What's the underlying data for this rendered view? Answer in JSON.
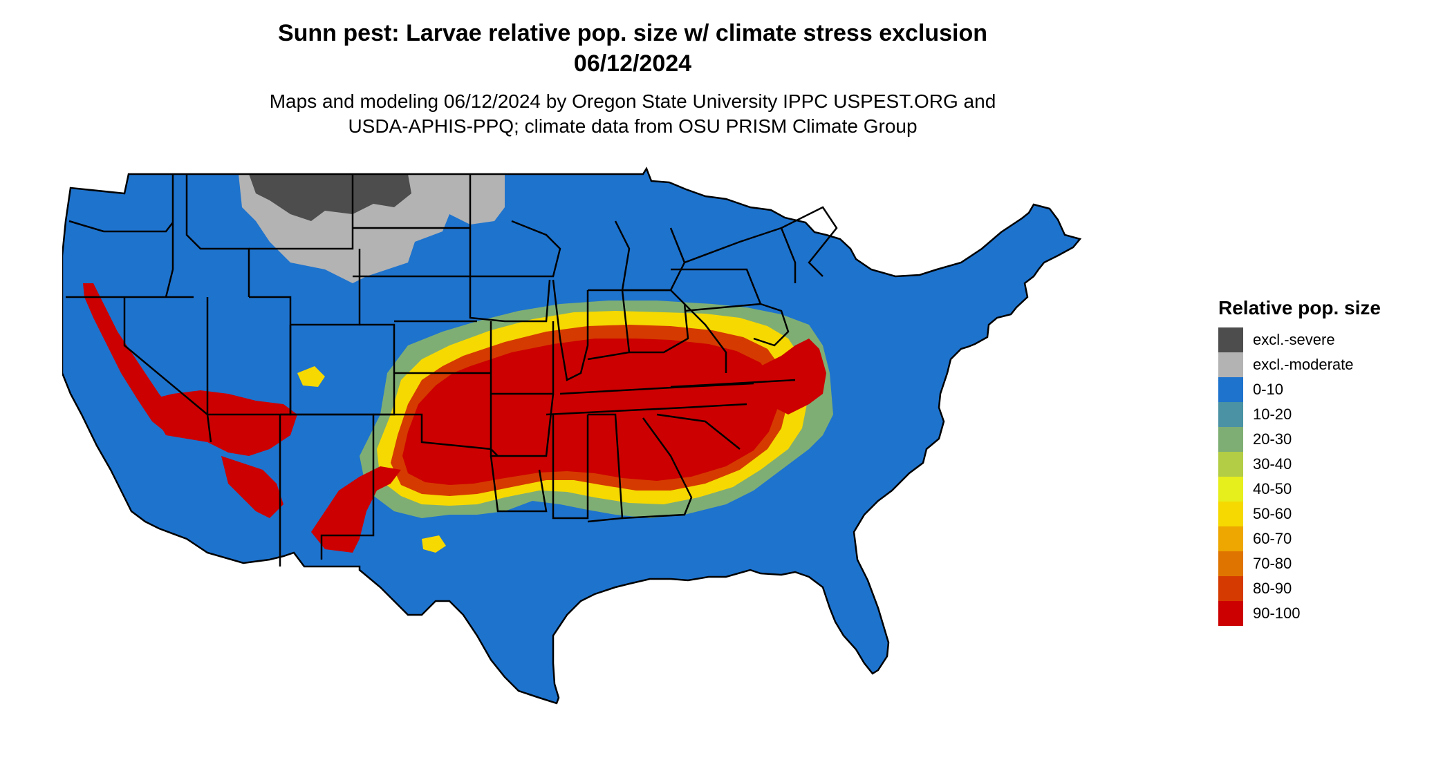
{
  "title": {
    "line1": "Sunn pest: Larvae relative pop. size w/ climate stress exclusion",
    "line2": "06/12/2024"
  },
  "subtitle": {
    "line1": "Maps and modeling 06/12/2024 by Oregon State University IPPC USPEST.ORG and",
    "line2": "USDA-APHIS-PPQ; climate data from OSU PRISM Climate Group"
  },
  "legend": {
    "title": "Relative pop. size",
    "items": [
      {
        "label": "excl.-severe",
        "color": "#4d4d4d"
      },
      {
        "label": "excl.-moderate",
        "color": "#b3b3b3"
      },
      {
        "label": "0-10",
        "color": "#1e73cd"
      },
      {
        "label": "10-20",
        "color": "#4a92a4"
      },
      {
        "label": "20-30",
        "color": "#7fae74"
      },
      {
        "label": "30-40",
        "color": "#b3cd44"
      },
      {
        "label": "40-50",
        "color": "#e6ee1c"
      },
      {
        "label": "50-60",
        "color": "#f6d900"
      },
      {
        "label": "60-70",
        "color": "#eda700"
      },
      {
        "label": "70-80",
        "color": "#e07400"
      },
      {
        "label": "80-90",
        "color": "#d53b00"
      },
      {
        "label": "90-100",
        "color": "#cc0000"
      }
    ]
  },
  "colors": {
    "base": "#1e73cd",
    "severe": "#4d4d4d",
    "moderate": "#b3b3b3",
    "high": "#cc0000",
    "mid_high": "#d53b00",
    "mid": "#f6d900",
    "low_mid": "#e6ee1c",
    "low": "#7fae74",
    "borders": "#000000"
  }
}
